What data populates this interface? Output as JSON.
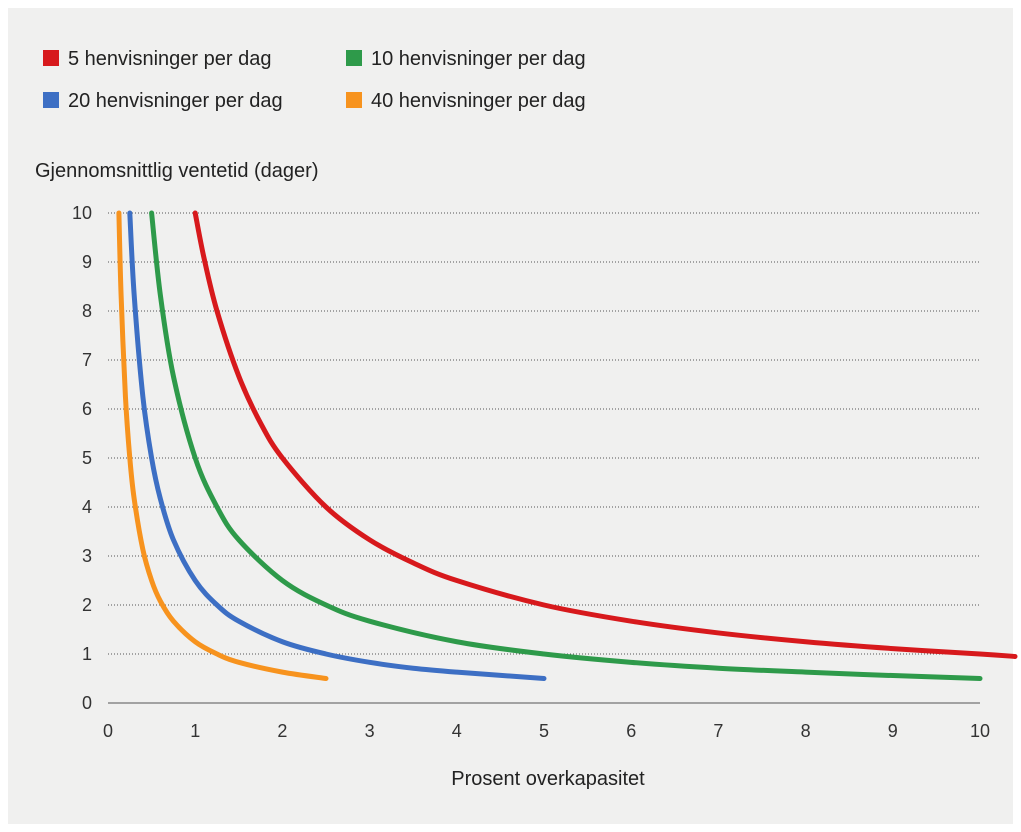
{
  "chart_data": {
    "type": "line",
    "title": "",
    "ylabel": "Gjennomsnittlig ventetid (dager)",
    "xlabel": "Prosent overkapasitet",
    "xlim": [
      0,
      10
    ],
    "ylim": [
      0,
      10
    ],
    "x_ticks": [
      0,
      1,
      2,
      3,
      4,
      5,
      6,
      7,
      8,
      9,
      10
    ],
    "y_ticks": [
      0,
      1,
      2,
      3,
      4,
      5,
      6,
      7,
      8,
      9,
      10
    ],
    "grid": "horizontal dotted",
    "legend_position": "top-left",
    "series": [
      {
        "name": "5 henvisninger per dag",
        "color": "#d7191c",
        "x": [
          1.0,
          1.1,
          1.25,
          1.5,
          1.75,
          2.0,
          2.5,
          3.0,
          3.5,
          4.0,
          5.0,
          6.0,
          7.0,
          8.0,
          9.0,
          10.0,
          10.5
        ],
        "y": [
          10.0,
          9.09,
          8.0,
          6.67,
          5.71,
          5.0,
          4.0,
          3.33,
          2.86,
          2.5,
          2.0,
          1.67,
          1.43,
          1.25,
          1.11,
          1.0,
          0.95
        ]
      },
      {
        "name": "10 henvisninger per dag",
        "color": "#2e9a4a",
        "x": [
          0.5,
          0.6,
          0.75,
          1.0,
          1.25,
          1.5,
          2.0,
          2.5,
          3.0,
          4.0,
          5.0,
          6.0,
          7.0,
          8.0,
          9.0,
          10.0
        ],
        "y": [
          10.0,
          8.33,
          6.67,
          5.0,
          4.0,
          3.33,
          2.5,
          2.0,
          1.67,
          1.25,
          1.0,
          0.83,
          0.71,
          0.63,
          0.56,
          0.5
        ]
      },
      {
        "name": "20 henvisninger per dag",
        "color": "#3d6fc4",
        "x": [
          0.25,
          0.3,
          0.4,
          0.5,
          0.6,
          0.75,
          1.0,
          1.25,
          1.5,
          2.0,
          2.5,
          3.0,
          3.5,
          4.0,
          5.0
        ],
        "y": [
          10.0,
          8.33,
          6.25,
          5.0,
          4.17,
          3.33,
          2.5,
          2.0,
          1.67,
          1.25,
          1.0,
          0.83,
          0.71,
          0.63,
          0.5
        ]
      },
      {
        "name": "40 henvisninger per dag",
        "color": "#f7931e",
        "x": [
          0.125,
          0.15,
          0.2,
          0.25,
          0.3,
          0.4,
          0.5,
          0.6,
          0.75,
          1.0,
          1.25,
          1.5,
          2.0,
          2.5
        ],
        "y": [
          10.0,
          8.33,
          6.25,
          5.0,
          4.17,
          3.13,
          2.5,
          2.08,
          1.67,
          1.25,
          1.0,
          0.83,
          0.63,
          0.5
        ]
      }
    ]
  }
}
